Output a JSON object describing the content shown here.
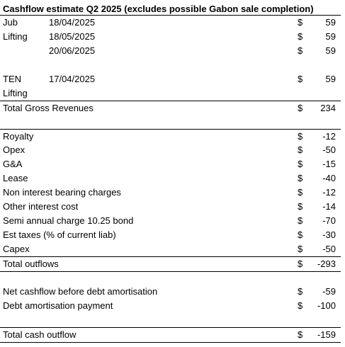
{
  "title": "Cashflow estimate Q2 2025 (excludes possible Gabon sale completion)",
  "rows": [
    {
      "label": "Jub",
      "date": "18/04/2025",
      "currency": "$",
      "value": 59
    },
    {
      "label": "Lifting",
      "date": "18/05/2025",
      "currency": "$",
      "value": 59
    },
    {
      "date": "20/06/2025",
      "currency": "$",
      "value": 59
    },
    {
      "label": "TEN",
      "date": "17/04/2025",
      "currency": "$",
      "value": 59
    },
    {
      "label": "Lifting"
    },
    {
      "label": "Total Gross Revenues",
      "currency": "$",
      "value": 234
    },
    {
      "label": "Royalty",
      "currency": "$",
      "value": -12
    },
    {
      "label": "Opex",
      "currency": "$",
      "value": -50
    },
    {
      "label": "G&A",
      "currency": "$",
      "value": -15
    },
    {
      "label": "Lease",
      "currency": "$",
      "value": -40
    },
    {
      "label": "Non interest bearing charges",
      "currency": "$",
      "value": -12
    },
    {
      "label": "Other interest cost",
      "currency": "$",
      "value": -14
    },
    {
      "label": "Semi annual charge 10.25 bond",
      "currency": "$",
      "value": -70
    },
    {
      "label": "Est taxes (% of current liab)",
      "currency": "$",
      "value": -30
    },
    {
      "label": "Capex",
      "currency": "$",
      "value": -50
    },
    {
      "label": "Total outflows",
      "currency": "$",
      "value": -293
    },
    {
      "label": "Net cashflow before debt amortisation",
      "currency": "$",
      "value": -59
    },
    {
      "label": "Debt amortisation payment",
      "currency": "$",
      "value": -100
    },
    {
      "label": "Total cash outflow",
      "currency": "$",
      "value": -159
    }
  ]
}
